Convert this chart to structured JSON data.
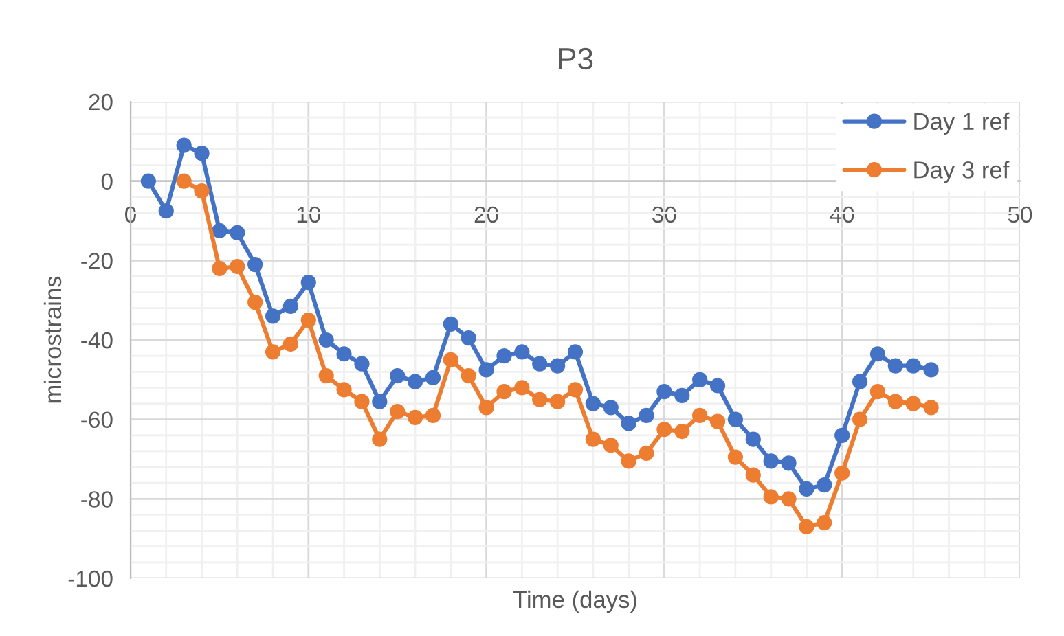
{
  "chart_data": {
    "type": "line",
    "title": "P3",
    "xlabel": "Time (days)",
    "ylabel": "microstrains",
    "series": [
      {
        "name": "Day 1 ref",
        "color": "#4472c4",
        "x": [
          1,
          2,
          3,
          4,
          5,
          6,
          7,
          8,
          9,
          10,
          11,
          12,
          13,
          14,
          15,
          16,
          17,
          18,
          19,
          20,
          21,
          22,
          23,
          24,
          25,
          26,
          27,
          28,
          29,
          30,
          31,
          32,
          33,
          34,
          35,
          36,
          37,
          38,
          39,
          40,
          41,
          42,
          43,
          44,
          45
        ],
        "values": [
          0,
          -7.5,
          9,
          7,
          -12.5,
          -13,
          -21,
          -34,
          -31.5,
          -25.5,
          -40,
          -43.5,
          -46,
          -55.5,
          -49,
          -50.5,
          -49.5,
          -36,
          -39.5,
          -47.5,
          -44,
          -43,
          -46,
          -46.5,
          -43,
          -56,
          -57,
          -61,
          -59,
          -53,
          -54,
          -50,
          -51.5,
          -60,
          -65,
          -70.5,
          -71,
          -77.5,
          -76.5,
          -64,
          -50.5,
          -43.5,
          -46.5,
          -46.5,
          -47.5
        ]
      },
      {
        "name": "Day 3 ref",
        "color": "#ed7d31",
        "x": [
          3,
          4,
          5,
          6,
          7,
          8,
          9,
          10,
          11,
          12,
          13,
          14,
          15,
          16,
          17,
          18,
          19,
          20,
          21,
          22,
          23,
          24,
          25,
          26,
          27,
          28,
          29,
          30,
          31,
          32,
          33,
          34,
          35,
          36,
          37,
          38,
          39,
          40,
          41,
          42,
          43,
          44,
          45
        ],
        "values": [
          0,
          -2.5,
          -22,
          -21.5,
          -30.5,
          -43,
          -41,
          -35,
          -49,
          -52.5,
          -55.5,
          -65,
          -58,
          -59.5,
          -59,
          -45,
          -49,
          -57,
          -53,
          -52,
          -55,
          -55.5,
          -52.5,
          -65,
          -66.5,
          -70.5,
          -68.5,
          -62.5,
          -63,
          -59,
          -60.5,
          -69.5,
          -74,
          -79.5,
          -80,
          -87,
          -86,
          -73.5,
          -60,
          -53,
          -55.5,
          -56,
          -57
        ]
      }
    ],
    "xlim": [
      0,
      50
    ],
    "xticks": [
      0,
      {
        "value": 2,
        "label": null
      },
      {
        "value": 4,
        "label": null
      },
      {
        "value": 6,
        "label": null
      },
      {
        "value": 8,
        "label": null
      },
      10,
      {
        "value": 12,
        "label": null
      },
      {
        "value": 14,
        "label": null
      },
      {
        "value": 16,
        "label": null
      },
      {
        "value": 18,
        "label": null
      },
      20,
      {
        "value": 22,
        "label": null
      },
      {
        "value": 24,
        "label": null
      },
      {
        "value": 26,
        "label": null
      },
      {
        "value": 28,
        "label": null
      },
      30,
      {
        "value": 32,
        "label": null
      },
      {
        "value": 34,
        "label": null
      },
      {
        "value": 36,
        "label": null
      },
      {
        "value": 38,
        "label": null
      },
      40,
      {
        "value": 42,
        "label": null
      },
      {
        "value": 44,
        "label": null
      },
      {
        "value": 46,
        "label": null
      },
      {
        "value": 48,
        "label": null
      },
      50
    ],
    "ylim": [
      -100,
      20
    ],
    "yticks": [
      -100,
      {
        "value": -96,
        "label": null
      },
      {
        "value": -92,
        "label": null
      },
      {
        "value": -88,
        "label": null
      },
      {
        "value": -84,
        "label": null
      },
      -80,
      {
        "value": -76,
        "label": null
      },
      {
        "value": -72,
        "label": null
      },
      {
        "value": -68,
        "label": null
      },
      {
        "value": -64,
        "label": null
      },
      -60,
      {
        "value": -56,
        "label": null
      },
      {
        "value": -52,
        "label": null
      },
      {
        "value": -48,
        "label": null
      },
      {
        "value": -44,
        "label": null
      },
      -40,
      {
        "value": -36,
        "label": null
      },
      {
        "value": -32,
        "label": null
      },
      {
        "value": -28,
        "label": null
      },
      {
        "value": -24,
        "label": null
      },
      -20,
      {
        "value": -16,
        "label": null
      },
      {
        "value": -12,
        "label": null
      },
      {
        "value": -8,
        "label": null
      },
      {
        "value": -4,
        "label": null
      },
      0,
      {
        "value": 4,
        "label": null
      },
      {
        "value": 8,
        "label": null
      },
      {
        "value": 12,
        "label": null
      },
      {
        "value": 16,
        "label": null
      },
      20
    ],
    "grid": true,
    "legend": "top right",
    "marker": "circle",
    "line_style": "solid"
  }
}
